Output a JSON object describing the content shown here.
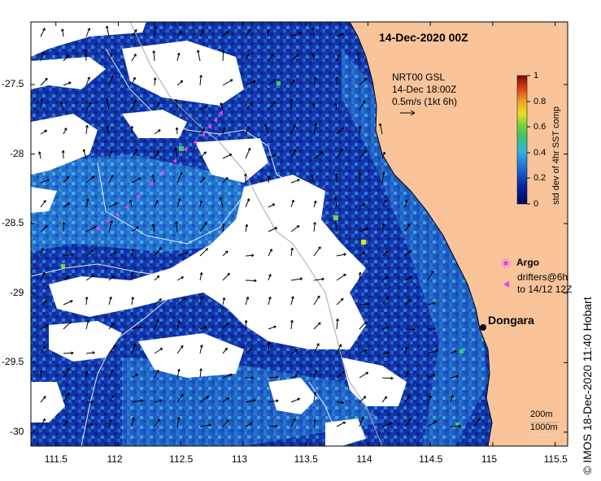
{
  "title": "14-Dec-2020 00Z",
  "vector_legend": {
    "line1": "NRT00 GSL",
    "line2": "14-Dec 18:00Z",
    "line3": "0.5m/s (1kt 6h)"
  },
  "colorbar": {
    "label": "std dev of 4hr SST comp",
    "ticks": [
      "0",
      "0.2",
      "0.4",
      "0.6",
      "0.8",
      "1"
    ],
    "min": 0,
    "max": 1
  },
  "argo_legend": {
    "argo_label": "Argo",
    "drifters_line1": "drifters@6h",
    "drifters_line2": "to 14/12 12Z"
  },
  "town": {
    "name": "Dongara"
  },
  "contour_legend": {
    "l1": "200m",
    "l2": "1000m"
  },
  "credit": "© IMOS 18-Dec-2020 11:40 Hobart",
  "axes": {
    "x_ticks": [
      "111.5",
      "112",
      "112.5",
      "113",
      "113.5",
      "114",
      "114.5",
      "115",
      "115.5"
    ],
    "y_ticks": [
      "-27.5",
      "-28",
      "-28.5",
      "-29",
      "-29.5",
      "-30"
    ],
    "x_range": [
      111.3,
      115.6
    ],
    "y_range": [
      -30.1,
      -27.05
    ]
  },
  "colors": {
    "land": "#f9c49a",
    "cloud": "#ffffff",
    "water_low": "#0a1f8c",
    "water_mid": "#1f6fd4",
    "water_hi": "#33b4e8",
    "argo": "#e83ef0"
  }
}
